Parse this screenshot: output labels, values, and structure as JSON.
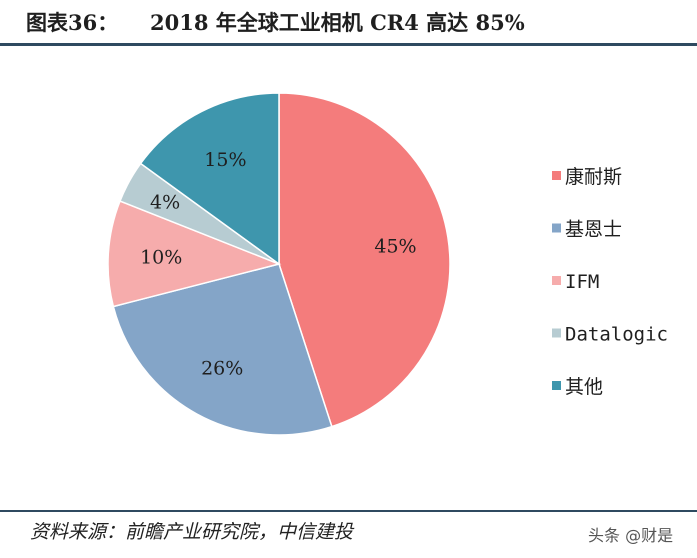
{
  "header": {
    "figure_label": "图表36：",
    "title": "2018 年全球工业相机 CR4 高达 85%"
  },
  "footer": {
    "source": "资料来源：前瞻产业研究院，中信建投",
    "watermark": "头条 @财是"
  },
  "colors": {
    "rule": "#2f4a60"
  },
  "chart_data": {
    "type": "pie",
    "title": "2018 年全球工业相机 CR4 高达 85%",
    "legend_position": "right",
    "start_angle_deg": 0,
    "direction": "clockwise",
    "slices": [
      {
        "name": "康耐斯",
        "value": 45,
        "label": "45%",
        "color": "#f47c7c"
      },
      {
        "name": "基恩士",
        "value": 26,
        "label": "26%",
        "color": "#84a5c8"
      },
      {
        "name": "IFM",
        "value": 10,
        "label": "10%",
        "color": "#f6acac"
      },
      {
        "name": "Datalogic",
        "value": 4,
        "label": "4%",
        "color": "#b7ccd2"
      },
      {
        "name": "其他",
        "value": 15,
        "label": "15%",
        "color": "#3e96ad"
      }
    ]
  }
}
